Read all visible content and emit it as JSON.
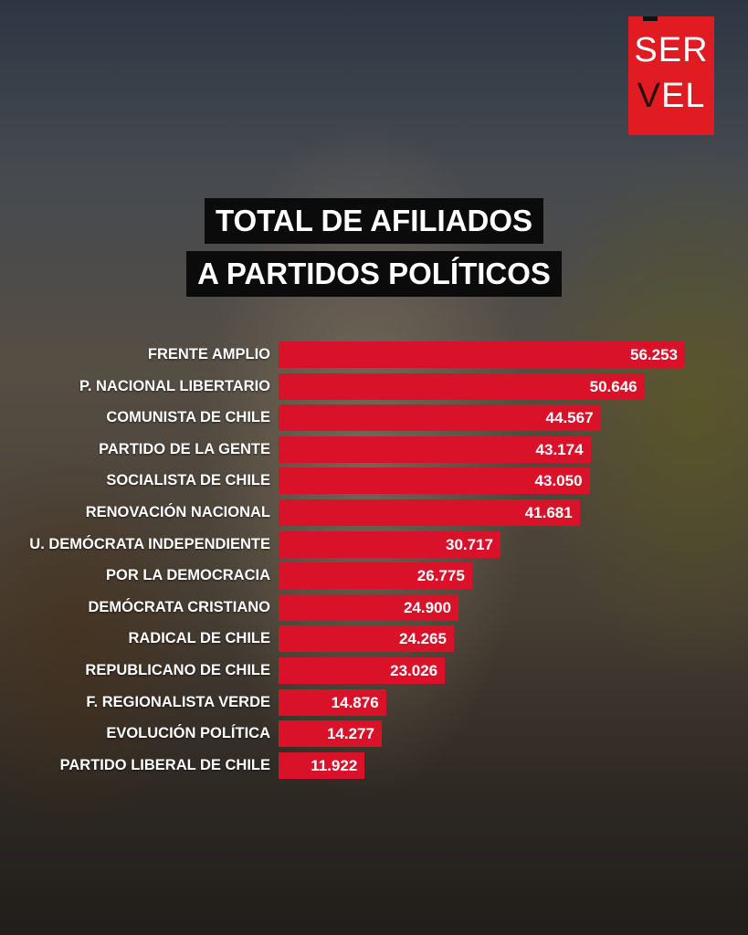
{
  "logo": {
    "line1": "SER",
    "line2_v": "V",
    "line2_rest": "EL",
    "text": "SERVEL"
  },
  "title": {
    "line1": "TOTAL DE AFILIADOS",
    "line2": "A PARTIDOS POLÍTICOS"
  },
  "colors": {
    "bar": "#d9122a",
    "logo": "#e01b22",
    "title_bg": "#0b0b0b"
  },
  "chart_data": {
    "type": "bar",
    "orientation": "horizontal",
    "title": "TOTAL DE AFILIADOS A PARTIDOS POLÍTICOS",
    "xlabel": "",
    "ylabel": "",
    "xlim": [
      0,
      56253
    ],
    "categories": [
      "FRENTE AMPLIO",
      "P. NACIONAL LIBERTARIO",
      "COMUNISTA DE CHILE",
      "PARTIDO DE LA GENTE",
      "SOCIALISTA DE CHILE",
      "RENOVACIÓN NACIONAL",
      "U. DEMÓCRATA INDEPENDIENTE",
      "POR LA DEMOCRACIA",
      "DEMÓCRATA CRISTIANO",
      "RADICAL DE CHILE",
      "REPUBLICANO DE CHILE",
      "F. REGIONALISTA VERDE",
      "EVOLUCIÓN POLÍTICA",
      "PARTIDO LIBERAL DE CHILE"
    ],
    "values": [
      56253,
      50646,
      44567,
      43174,
      43050,
      41681,
      30717,
      26775,
      24900,
      24265,
      23026,
      14876,
      14277,
      11922
    ],
    "value_labels": [
      "56.253",
      "50.646",
      "44.567",
      "43.174",
      "43.050",
      "41.681",
      "30.717",
      "26.775",
      "24.900",
      "24.265",
      "23.026",
      "14.876",
      "14.277",
      "11.922"
    ]
  }
}
